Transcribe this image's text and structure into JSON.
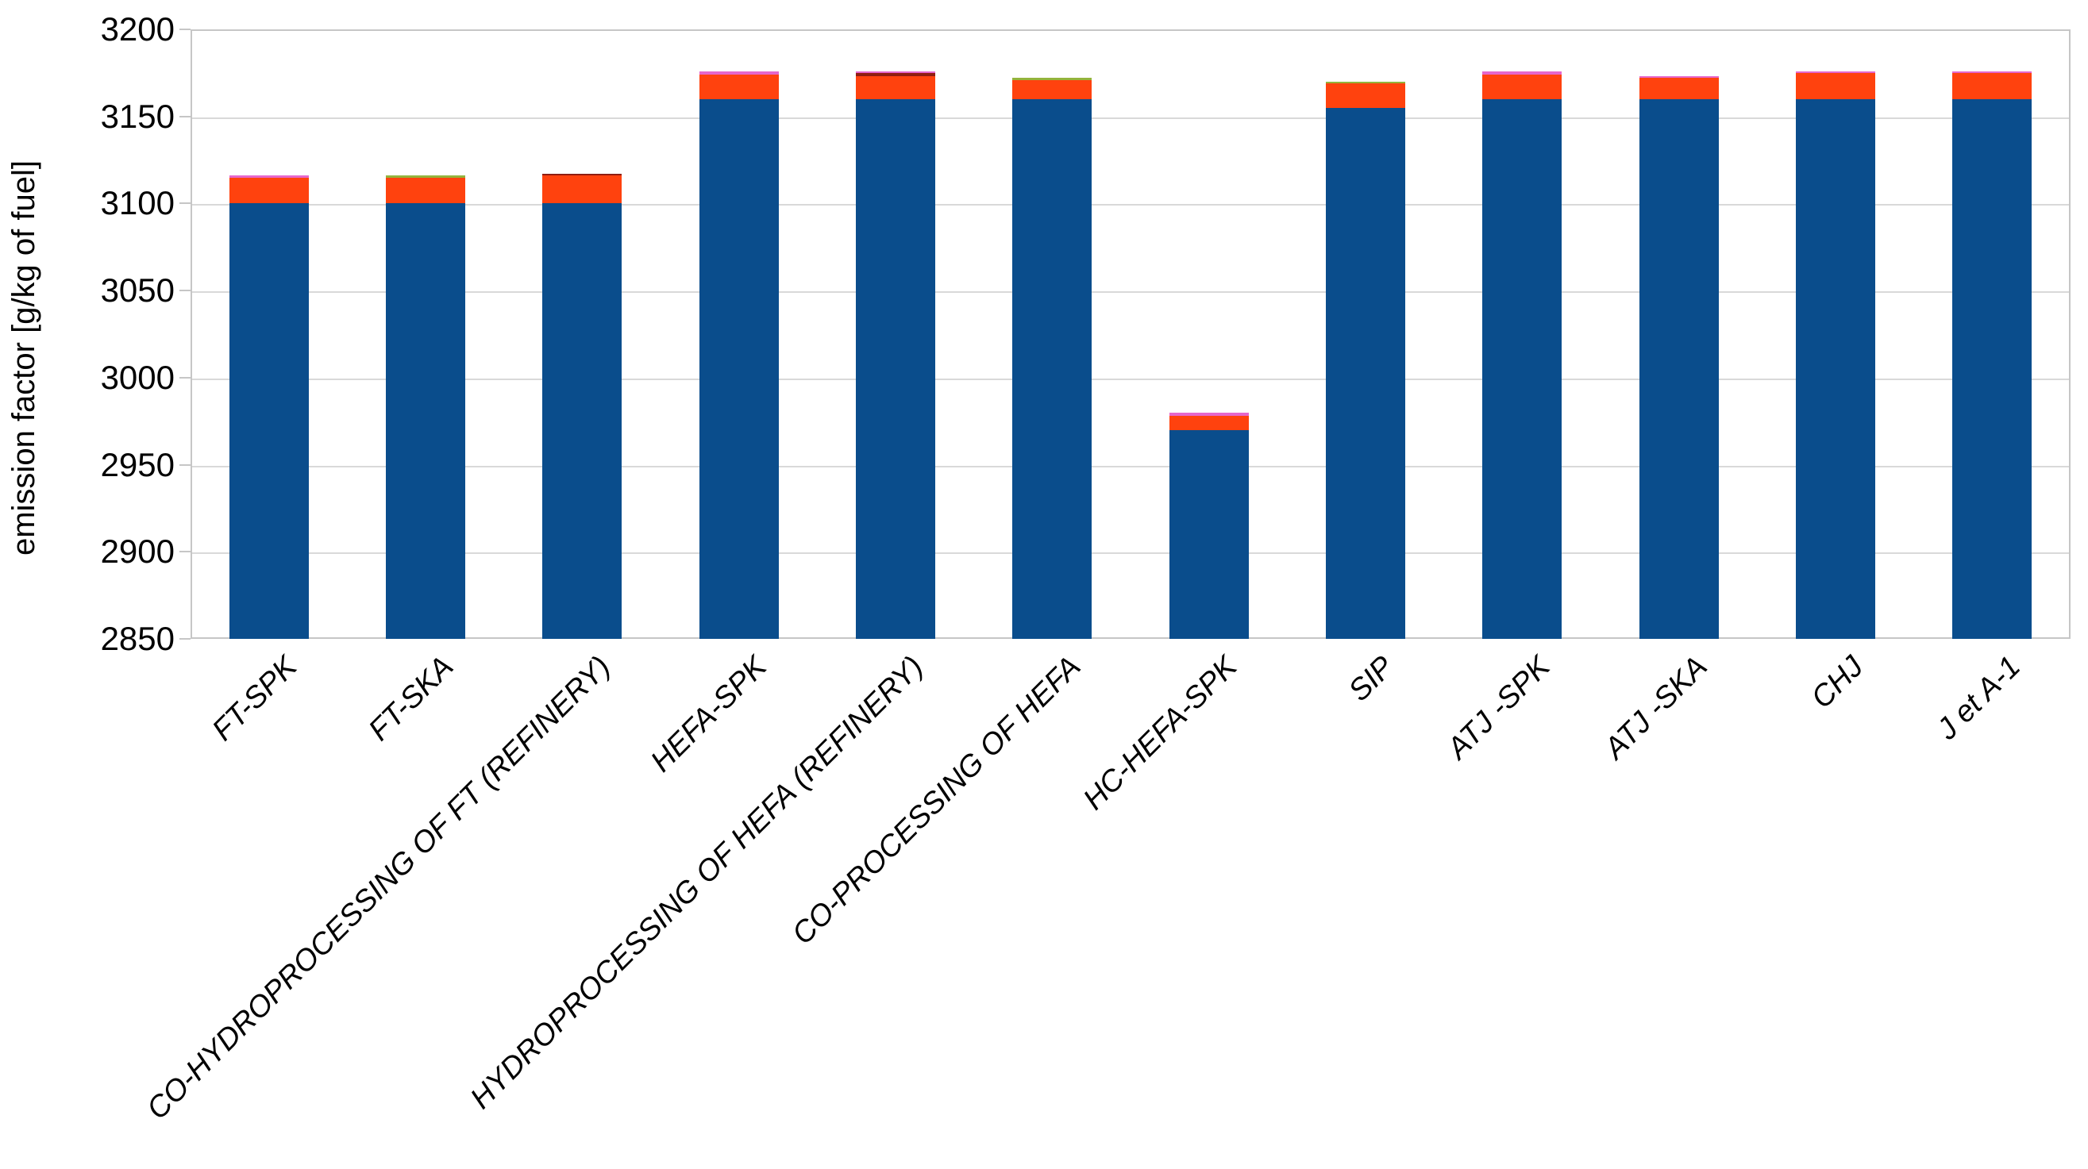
{
  "chart_data": {
    "type": "bar",
    "stacked": true,
    "title": "",
    "xlabel": "",
    "ylabel": "emission factor [g/kg of fuel]",
    "ylim": [
      2850,
      3200
    ],
    "ytick_step": 50,
    "yticks": [
      2850,
      2900,
      2950,
      3000,
      3050,
      3100,
      3150,
      3200
    ],
    "grid": "horizontal",
    "legend": "none",
    "categories": [
      "FT-SPK",
      "FT-SKA",
      "CO-HYDROPROCESSING OF FT (REFINERY)",
      "HEFA-SPK",
      "HYDROPROCESSING OF HEFA (REFINERY)",
      "CO-PROCESSING OF HEFA",
      "HC-HEFA-SPK",
      "SIP",
      "ATJ -SPK",
      "ATJ -SKA",
      "CHJ",
      "J et A-1"
    ],
    "baseline": 2850,
    "bars": [
      {
        "category": "FT-SPK",
        "segments": [
          {
            "color": "blue",
            "to": 3100
          },
          {
            "color": "orange",
            "to": 3115
          },
          {
            "color": "magenta",
            "to": 3116
          }
        ]
      },
      {
        "category": "FT-SKA",
        "segments": [
          {
            "color": "blue",
            "to": 3100
          },
          {
            "color": "orange",
            "to": 3115
          },
          {
            "color": "green",
            "to": 3116
          }
        ]
      },
      {
        "category": "CO-HYDROPROCESSING OF FT (REFINERY)",
        "segments": [
          {
            "color": "blue",
            "to": 3100
          },
          {
            "color": "orange",
            "to": 3116
          },
          {
            "color": "darkred",
            "to": 3117
          }
        ]
      },
      {
        "category": "HEFA-SPK",
        "segments": [
          {
            "color": "blue",
            "to": 3160
          },
          {
            "color": "orange",
            "to": 3174
          },
          {
            "color": "magenta",
            "to": 3176
          }
        ]
      },
      {
        "category": "HYDROPROCESSING OF HEFA (REFINERY)",
        "segments": [
          {
            "color": "blue",
            "to": 3160
          },
          {
            "color": "orange",
            "to": 3173
          },
          {
            "color": "darkred",
            "to": 3175
          },
          {
            "color": "magenta",
            "to": 3176
          }
        ]
      },
      {
        "category": "CO-PROCESSING OF HEFA",
        "segments": [
          {
            "color": "blue",
            "to": 3160
          },
          {
            "color": "orange",
            "to": 3171
          },
          {
            "color": "green",
            "to": 3172
          }
        ]
      },
      {
        "category": "HC-HEFA-SPK",
        "segments": [
          {
            "color": "blue",
            "to": 2970
          },
          {
            "color": "orange",
            "to": 2978
          },
          {
            "color": "magenta",
            "to": 2980
          }
        ]
      },
      {
        "category": "SIP",
        "segments": [
          {
            "color": "blue",
            "to": 3155
          },
          {
            "color": "orange",
            "to": 3169
          },
          {
            "color": "green",
            "to": 3170
          }
        ]
      },
      {
        "category": "ATJ -SPK",
        "segments": [
          {
            "color": "blue",
            "to": 3160
          },
          {
            "color": "orange",
            "to": 3174
          },
          {
            "color": "magenta",
            "to": 3176
          }
        ]
      },
      {
        "category": "ATJ -SKA",
        "segments": [
          {
            "color": "blue",
            "to": 3160
          },
          {
            "color": "orange",
            "to": 3172
          },
          {
            "color": "magenta",
            "to": 3173
          }
        ]
      },
      {
        "category": "CHJ",
        "segments": [
          {
            "color": "blue",
            "to": 3160
          },
          {
            "color": "orange",
            "to": 3175
          },
          {
            "color": "magenta",
            "to": 3176
          }
        ]
      },
      {
        "category": "J et A-1",
        "segments": [
          {
            "color": "blue",
            "to": 3160
          },
          {
            "color": "orange",
            "to": 3175
          },
          {
            "color": "magenta",
            "to": 3176
          }
        ]
      }
    ],
    "palette": {
      "blue": "#0a4d8c",
      "orange": "#ff420e",
      "green": "#94b33c",
      "magenta": "#e567cc",
      "darkred": "#8f1d11"
    },
    "colors": {
      "gridline": "#d9d9d9",
      "plot_border": "#c6c6c6",
      "text": "#000000",
      "background": "#ffffff"
    }
  }
}
